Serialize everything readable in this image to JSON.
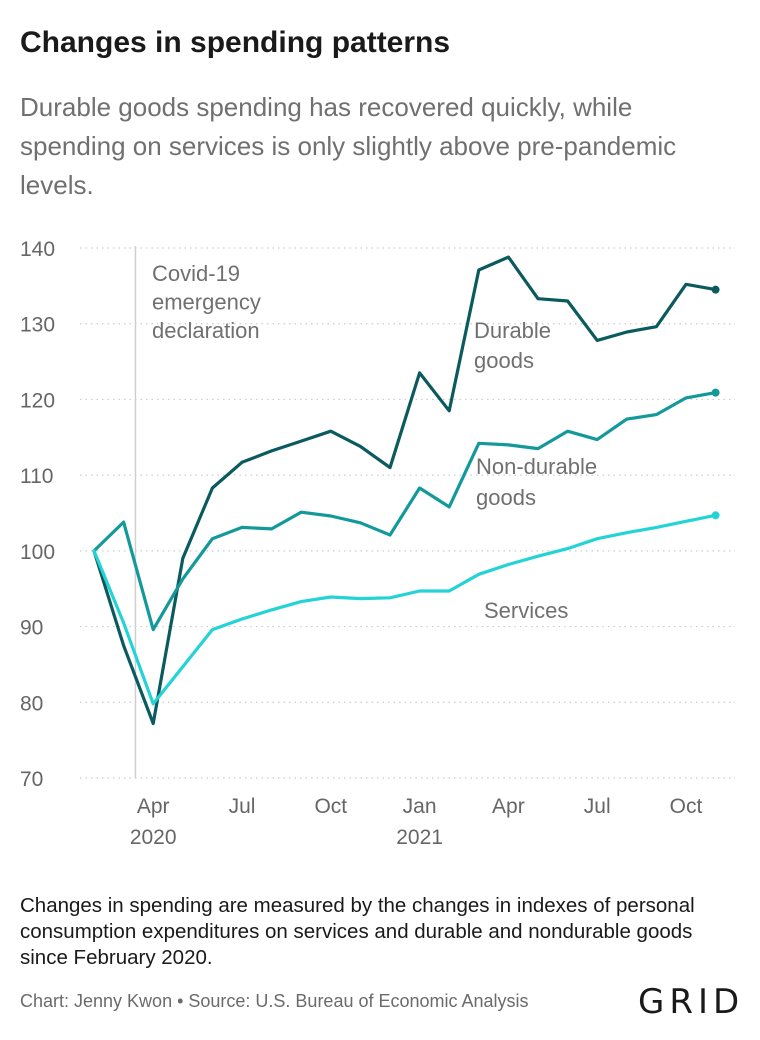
{
  "title": "Changes in spending patterns",
  "subtitle": "Durable goods spending has recovered quickly, while spending on services is only slightly above pre-pandemic levels.",
  "note": "Changes in spending are measured by the changes in indexes of personal consumption expenditures on services and durable and nondurable goods since February 2020.",
  "credit": "Chart: Jenny Kwon • Source: U.S. Bureau of Economic Analysis",
  "logo": "GRID",
  "colors": {
    "durable": "#0b5a5e",
    "nondurable": "#14999b",
    "services": "#24d3d5",
    "grid": "#cccccc",
    "event_line": "#cfcfcf"
  },
  "chart_data": {
    "type": "line",
    "title": "",
    "xlabel": "",
    "ylabel": "",
    "ylim": [
      70,
      140
    ],
    "y_ticks": [
      70,
      80,
      90,
      100,
      110,
      120,
      130,
      140
    ],
    "grid": true,
    "x": [
      "2020-02",
      "2020-03",
      "2020-04",
      "2020-05",
      "2020-06",
      "2020-07",
      "2020-08",
      "2020-09",
      "2020-10",
      "2020-11",
      "2020-12",
      "2021-01",
      "2021-02",
      "2021-03",
      "2021-04",
      "2021-05",
      "2021-06",
      "2021-07",
      "2021-08",
      "2021-09",
      "2021-10",
      "2021-11"
    ],
    "x_ticks": [
      {
        "x": "2020-04",
        "label": "Apr",
        "year": "2020"
      },
      {
        "x": "2020-07",
        "label": "Jul",
        "year": ""
      },
      {
        "x": "2020-10",
        "label": "Oct",
        "year": ""
      },
      {
        "x": "2021-01",
        "label": "Jan",
        "year": "2021"
      },
      {
        "x": "2021-04",
        "label": "Apr",
        "year": ""
      },
      {
        "x": "2021-07",
        "label": "Jul",
        "year": ""
      },
      {
        "x": "2021-10",
        "label": "Oct",
        "year": ""
      }
    ],
    "series": [
      {
        "key": "durable",
        "name": "Durable goods",
        "label_lines": [
          "Durable",
          "goods"
        ],
        "values": [
          100,
          87.5,
          77.2,
          99,
          108.3,
          111.7,
          113.2,
          114.5,
          115.8,
          113.8,
          111,
          123.5,
          118.5,
          137.1,
          138.8,
          133.3,
          133,
          127.8,
          128.9,
          129.6,
          135.2,
          134.5
        ]
      },
      {
        "key": "nondurable",
        "name": "Non-durable goods",
        "label_lines": [
          "Non-durable",
          "goods"
        ],
        "values": [
          100,
          103.8,
          89.6,
          96.3,
          101.6,
          103.1,
          102.9,
          105.1,
          104.6,
          103.7,
          102.1,
          108.3,
          105.8,
          114.2,
          114,
          113.5,
          115.8,
          114.7,
          117.4,
          118,
          120.2,
          120.9
        ]
      },
      {
        "key": "services",
        "name": "Services",
        "label_lines": [
          "Services"
        ],
        "values": [
          100,
          90.5,
          79.8,
          84.7,
          89.6,
          91,
          92.2,
          93.3,
          93.9,
          93.7,
          93.8,
          94.7,
          94.7,
          96.9,
          98.2,
          99.3,
          100.3,
          101.6,
          102.4,
          103.1,
          103.9,
          104.7
        ]
      }
    ],
    "annotations": [
      {
        "x": "2020-03-13",
        "lines": [
          "Covid-19",
          "emergency",
          "declaration"
        ]
      }
    ]
  }
}
